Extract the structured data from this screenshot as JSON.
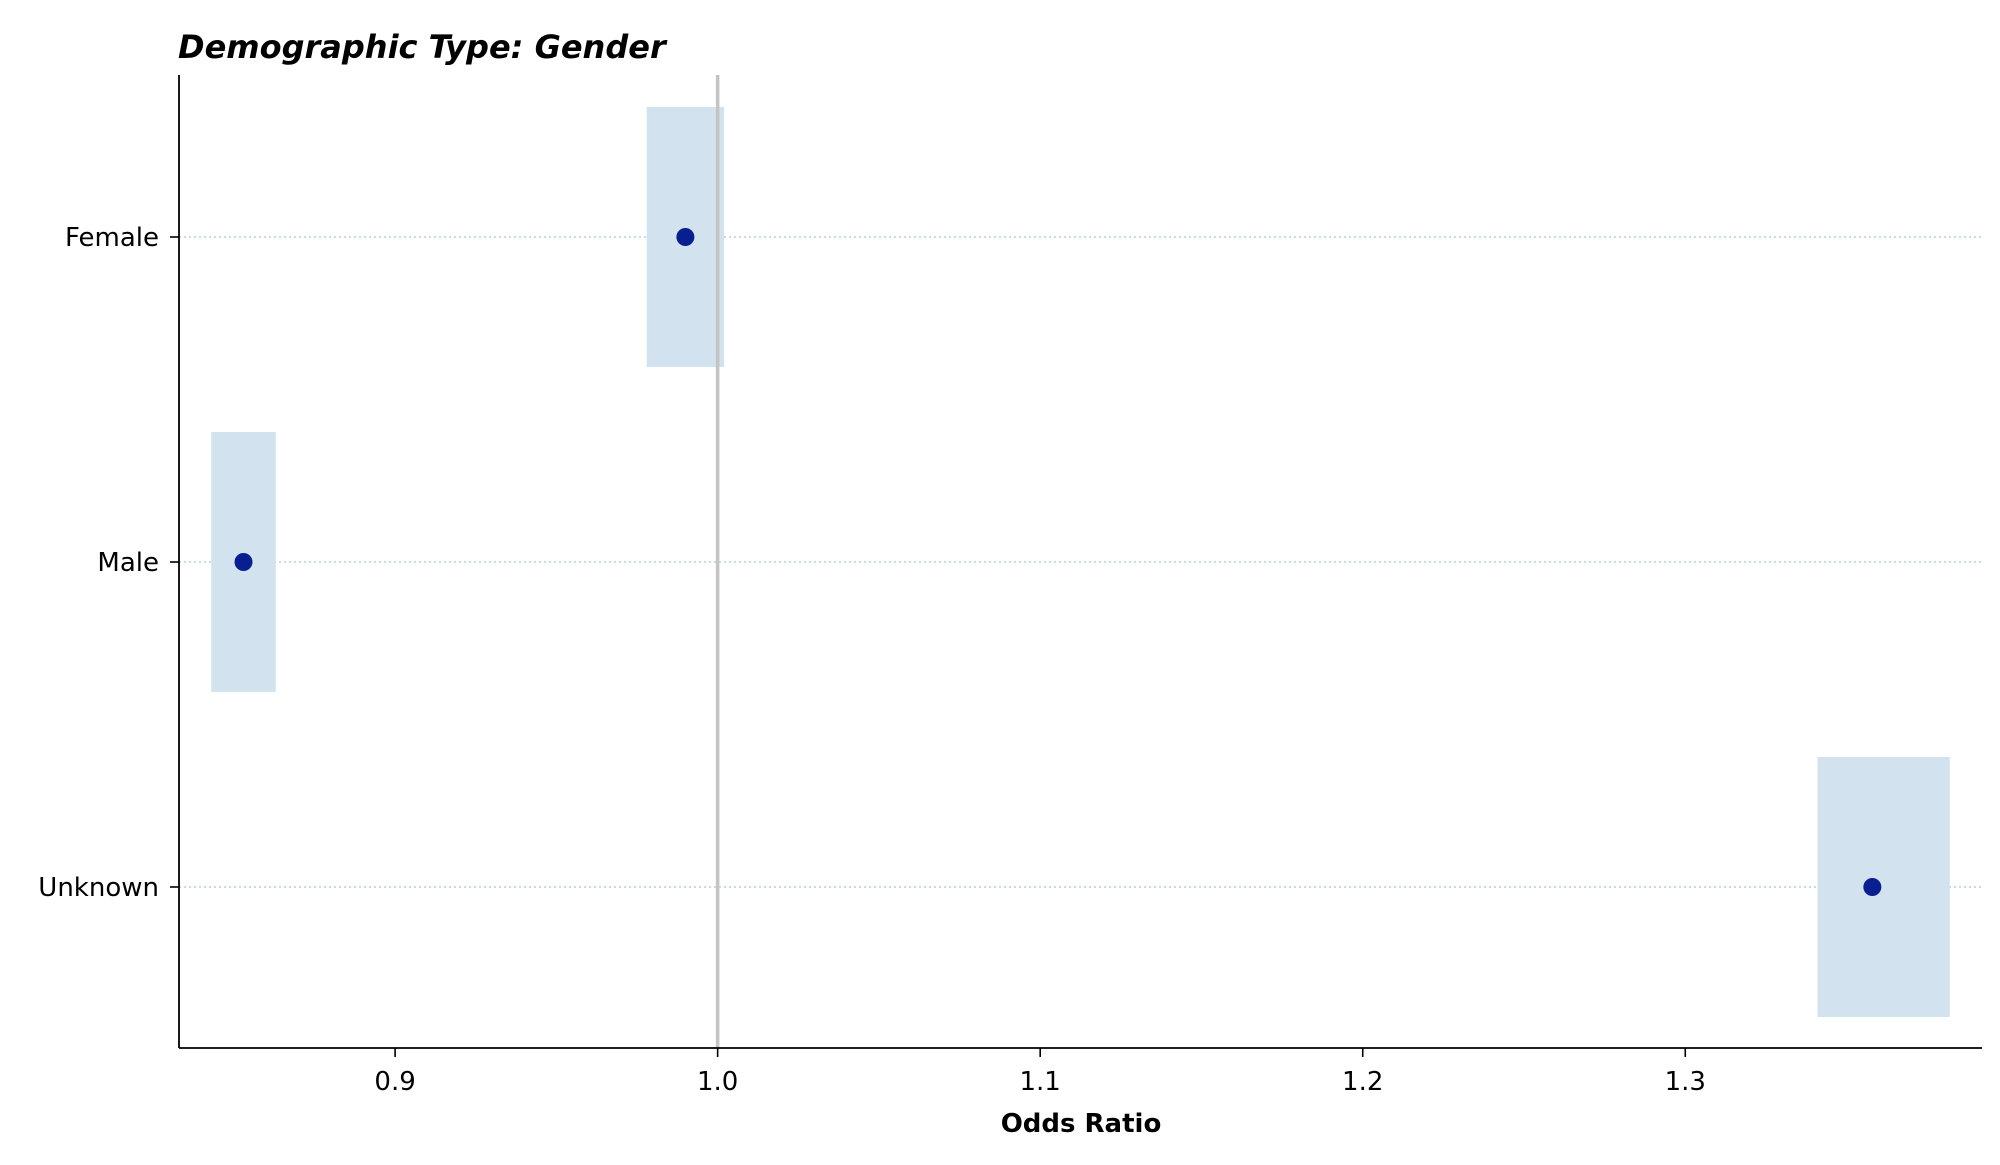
{
  "chart_data": {
    "type": "scatter",
    "title": "Demographic Type: Gender",
    "xlabel": "Odds Ratio",
    "ylabel": "",
    "xlim": [
      0.833,
      1.392
    ],
    "x_ticks": [
      0.9,
      1.0,
      1.1,
      1.2,
      1.3
    ],
    "x_tick_labels": [
      "0.9",
      "1.0",
      "1.1",
      "1.2",
      "1.3"
    ],
    "reference_line": 1.0,
    "categories": [
      "Female",
      "Male",
      "Unknown"
    ],
    "series": [
      {
        "values": [
          0.99,
          0.853,
          1.358
        ],
        "ci_lower": [
          0.978,
          0.843,
          1.341
        ],
        "ci_upper": [
          1.002,
          0.863,
          1.382
        ]
      }
    ],
    "grid": "horizontal dotted at category rows",
    "legend": "none",
    "colors": {
      "point": "#0a1f8f",
      "ci_band": "#d2e3ef",
      "reference_line": "#c4c4c4",
      "gridline": "#a9c6d8",
      "axis": "#000000"
    }
  }
}
